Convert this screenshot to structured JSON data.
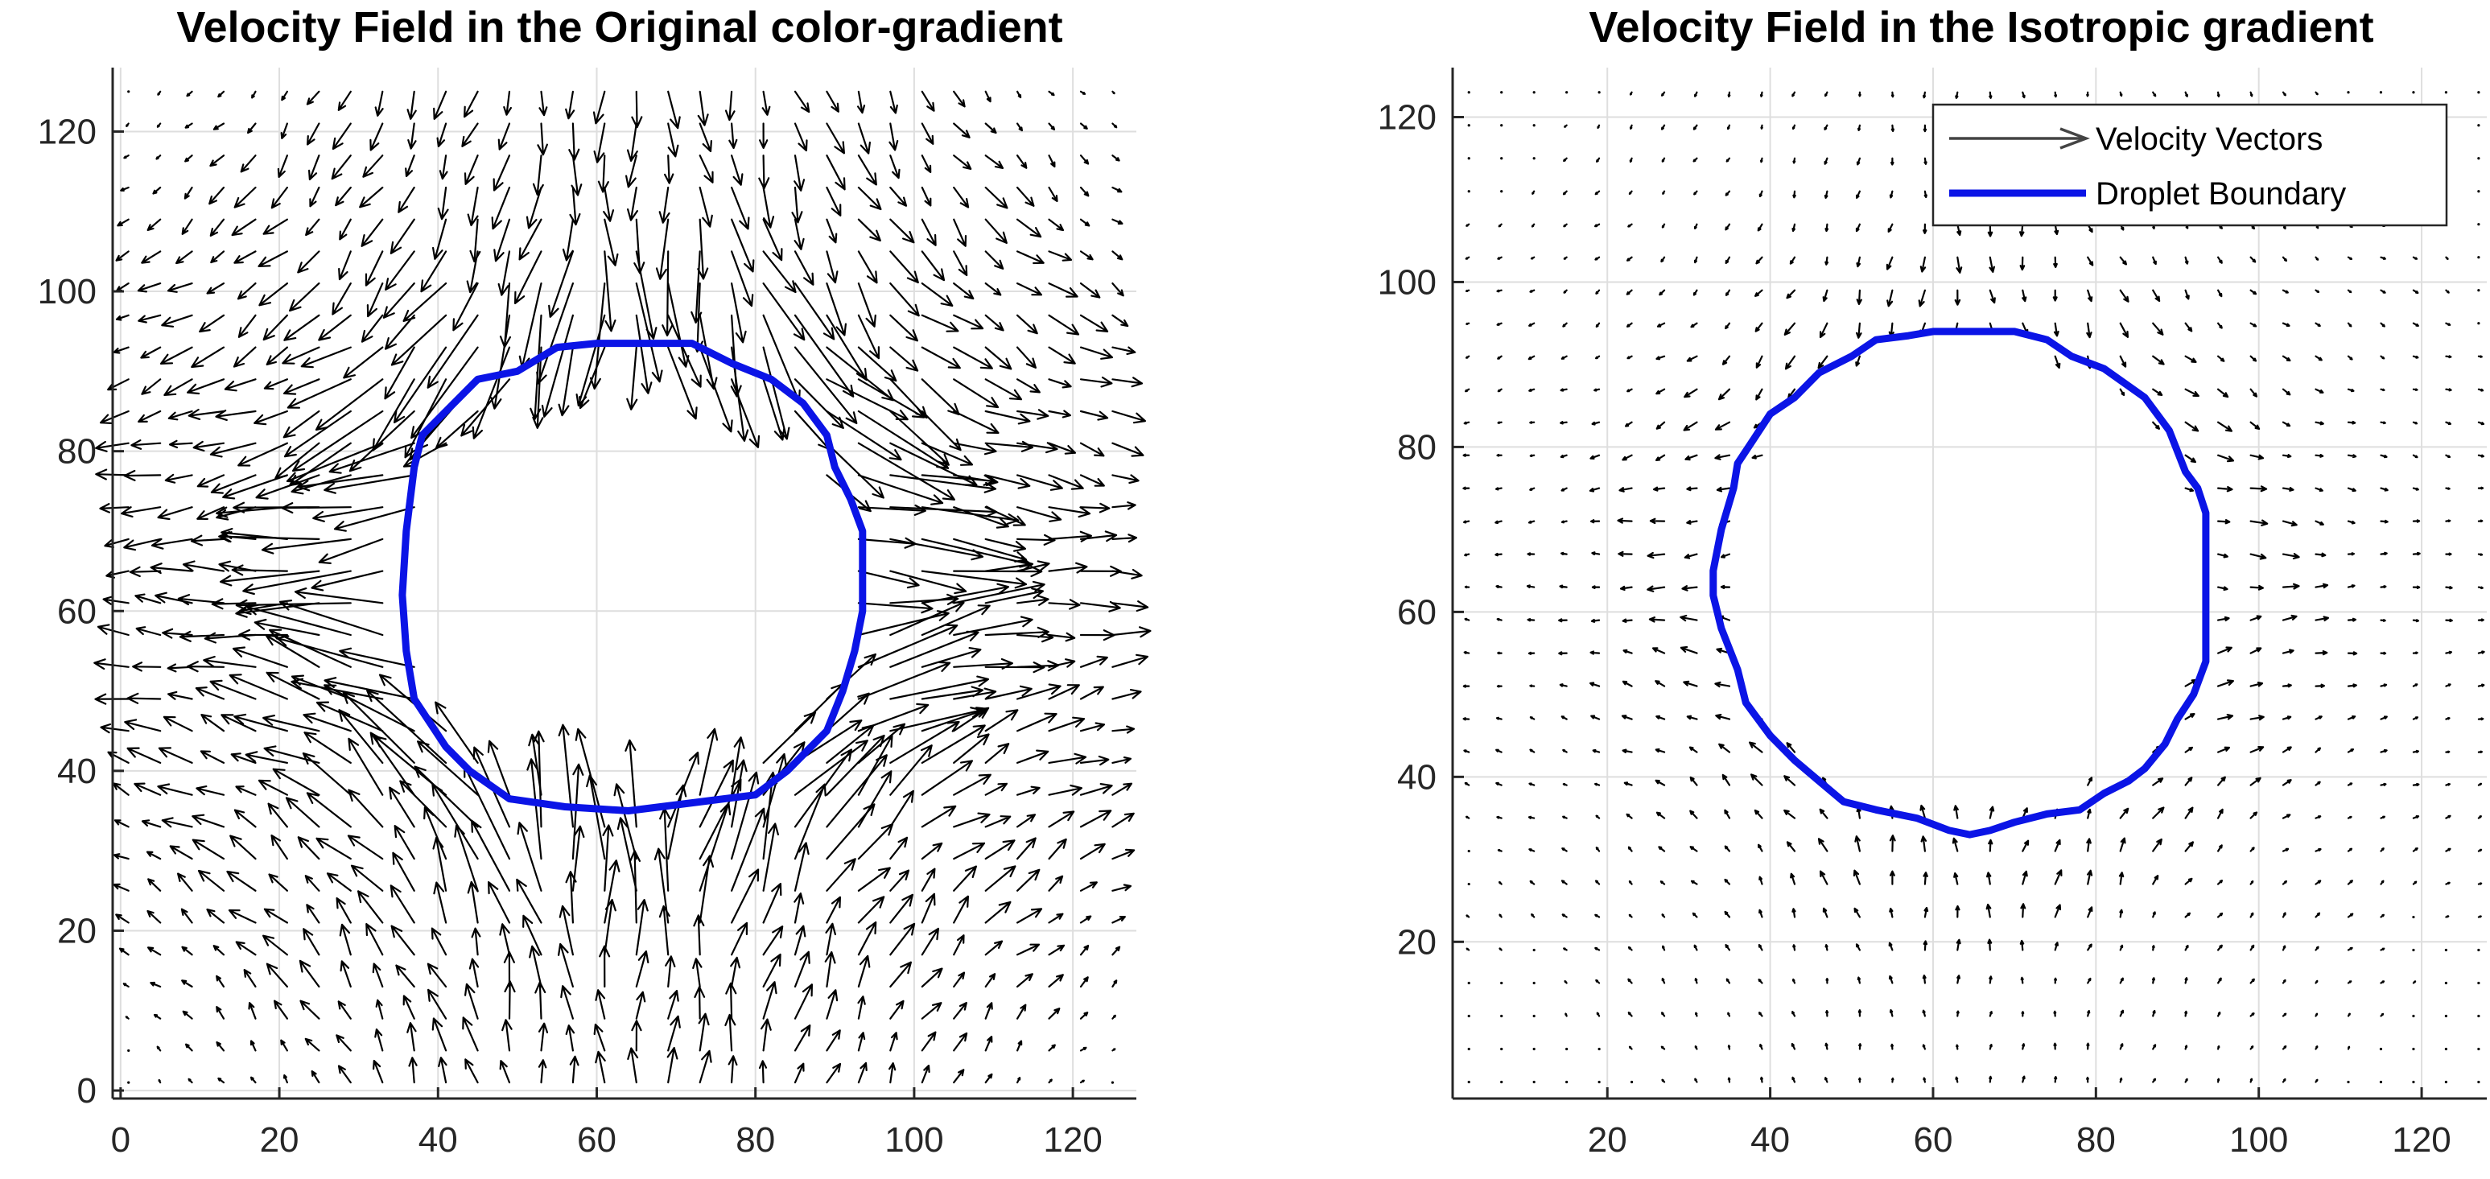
{
  "chart_data": [
    {
      "type": "quiver",
      "title": "Velocity Field in the Original color-gradient",
      "xlabel": "",
      "ylabel": "",
      "xlim": [
        -1,
        128
      ],
      "ylim": [
        -1,
        128
      ],
      "xticks": [
        0,
        20,
        40,
        60,
        80,
        100,
        120
      ],
      "yticks": [
        0,
        20,
        40,
        60,
        80,
        100,
        120
      ],
      "grid": true,
      "legend": null,
      "field": {
        "grid_spacing": 4,
        "center": [
          64,
          64
        ],
        "droplet_radius": 29,
        "max_arrow_length": 11,
        "description": "strong four-lobed recirculation pattern around the droplet with large vectors near the interface at the diagonals"
      },
      "series": [
        {
          "name": "Droplet Boundary",
          "kind": "boundary",
          "color": "#0b14e6",
          "points": [
            [
              64,
              93.5
            ],
            [
              72,
              93.5
            ],
            [
              77,
              91
            ],
            [
              82,
              89
            ],
            [
              86,
              86
            ],
            [
              89,
              82
            ],
            [
              90,
              78
            ],
            [
              92,
              74
            ],
            [
              93.5,
              70
            ],
            [
              93.5,
              60
            ],
            [
              92.5,
              55
            ],
            [
              91,
              50
            ],
            [
              89,
              45
            ],
            [
              84,
              40
            ],
            [
              80,
              37
            ],
            [
              72,
              36
            ],
            [
              64,
              35
            ],
            [
              56,
              35.5
            ],
            [
              49,
              36.5
            ],
            [
              44,
              40
            ],
            [
              41,
              43
            ],
            [
              39,
              46
            ],
            [
              37,
              49
            ],
            [
              36,
              55
            ],
            [
              35.5,
              62
            ],
            [
              36,
              70
            ],
            [
              37,
              78
            ],
            [
              38,
              82
            ],
            [
              41,
              85
            ],
            [
              45,
              89
            ],
            [
              50,
              90
            ],
            [
              55,
              93
            ],
            [
              60,
              93.5
            ],
            [
              64,
              93.5
            ]
          ]
        }
      ]
    },
    {
      "type": "quiver",
      "title": "Velocity Field in the Isotropic gradient",
      "xlabel": "",
      "ylabel": "",
      "xlim": [
        1,
        128
      ],
      "ylim": [
        1,
        126
      ],
      "xticks": [
        20,
        40,
        60,
        80,
        100,
        120
      ],
      "yticks": [
        20,
        40,
        60,
        80,
        100,
        120
      ],
      "grid": true,
      "legend": {
        "position": "top-right",
        "entries": [
          {
            "label": "Velocity Vectors",
            "kind": "arrow",
            "color": "#000000"
          },
          {
            "label": "Droplet Boundary",
            "kind": "line",
            "color": "#0b14e6"
          }
        ]
      },
      "field": {
        "grid_spacing": 4,
        "center": [
          64,
          64
        ],
        "droplet_radius": 30,
        "max_arrow_length": 1.6,
        "description": "very weak spurious currents; vectors mostly appear as small dots"
      },
      "series": [
        {
          "name": "Droplet Boundary",
          "kind": "boundary",
          "color": "#0b14e6",
          "points": [
            [
              64,
              94
            ],
            [
              70,
              94
            ],
            [
              74,
              93
            ],
            [
              77,
              91
            ],
            [
              81,
              89.5
            ],
            [
              86,
              86
            ],
            [
              89,
              82
            ],
            [
              91,
              77
            ],
            [
              92.5,
              75
            ],
            [
              93.5,
              72
            ],
            [
              93.5,
              60
            ],
            [
              93.5,
              54
            ],
            [
              92,
              50
            ],
            [
              90,
              47
            ],
            [
              88.5,
              44
            ],
            [
              86,
              41
            ],
            [
              84,
              39.5
            ],
            [
              81,
              38
            ],
            [
              78,
              36
            ],
            [
              74,
              35.5
            ],
            [
              70,
              34.5
            ],
            [
              67,
              33.5
            ],
            [
              64.5,
              33
            ],
            [
              62,
              33.5
            ],
            [
              58,
              35
            ],
            [
              53,
              36
            ],
            [
              49,
              37
            ],
            [
              46,
              39.5
            ],
            [
              43,
              42
            ],
            [
              40,
              45
            ],
            [
              37,
              49
            ],
            [
              36,
              53
            ],
            [
              34,
              58
            ],
            [
              33,
              62
            ],
            [
              33,
              65
            ],
            [
              34,
              70
            ],
            [
              35.5,
              75
            ],
            [
              36,
              78
            ],
            [
              38,
              81
            ],
            [
              40,
              84
            ],
            [
              43,
              86
            ],
            [
              46,
              89
            ],
            [
              50,
              91
            ],
            [
              53,
              93
            ],
            [
              57,
              93.5
            ],
            [
              60,
              94
            ],
            [
              64,
              94
            ]
          ]
        }
      ]
    }
  ]
}
